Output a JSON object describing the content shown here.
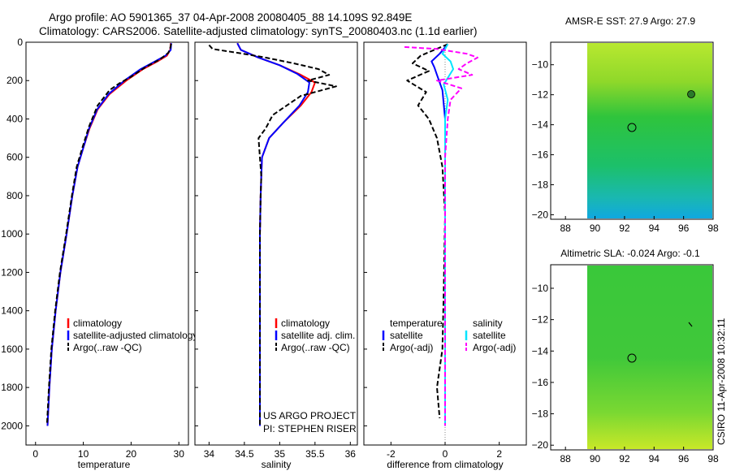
{
  "header": {
    "line1": "Argo profile: AO 5901365_37 04-Apr-2008 20080405_88 14.109S 92.849E",
    "line2": "Climatology: CARS2006. Satellite-adjusted climatology: synTS_20080403.nc (1.1d earlier)"
  },
  "credit": "CSIRO 11-Apr-2008 10:32:11",
  "chart_data": [
    {
      "id": "temperature",
      "type": "line",
      "xlabel": "temperature",
      "ylabel": "",
      "xlim": [
        -2,
        32
      ],
      "ylim": [
        2100,
        0
      ],
      "xticks": [
        0,
        10,
        20,
        30
      ],
      "yticks": [
        0,
        200,
        400,
        600,
        800,
        1000,
        1200,
        1400,
        1600,
        1800,
        2000
      ],
      "legend": [
        "climatology",
        "satellite-adjusted climatology",
        "Argo(..raw -QC)"
      ],
      "series": [
        {
          "name": "climatology",
          "color": "#ff0000",
          "dash": "",
          "points": [
            [
              28.3,
              5
            ],
            [
              28.2,
              40
            ],
            [
              27.5,
              70
            ],
            [
              25.5,
              100
            ],
            [
              22.5,
              140
            ],
            [
              19,
              200
            ],
            [
              15.5,
              270
            ],
            [
              13,
              350
            ],
            [
              11.3,
              450
            ],
            [
              10,
              550
            ],
            [
              8.8,
              650
            ],
            [
              7.7,
              800
            ],
            [
              6.5,
              1000
            ],
            [
              5.2,
              1200
            ],
            [
              4.2,
              1400
            ],
            [
              3.4,
              1600
            ],
            [
              2.9,
              1800
            ],
            [
              2.5,
              2000
            ]
          ]
        },
        {
          "name": "satellite-adjusted climatology",
          "color": "#0000ff",
          "dash": "",
          "points": [
            [
              28.4,
              5
            ],
            [
              28.3,
              40
            ],
            [
              27.2,
              70
            ],
            [
              25,
              100
            ],
            [
              22,
              140
            ],
            [
              18.6,
              200
            ],
            [
              15.3,
              270
            ],
            [
              12.9,
              350
            ],
            [
              11.2,
              450
            ],
            [
              10,
              550
            ],
            [
              8.8,
              650
            ],
            [
              7.7,
              800
            ],
            [
              6.5,
              1000
            ],
            [
              5.2,
              1200
            ],
            [
              4.2,
              1400
            ],
            [
              3.4,
              1600
            ],
            [
              2.9,
              1800
            ],
            [
              2.5,
              2000
            ]
          ]
        },
        {
          "name": "Argo(..raw -QC)",
          "color": "#000000",
          "dash": "6,3",
          "points": [
            [
              28.4,
              8
            ],
            [
              28.2,
              30
            ],
            [
              27.8,
              55
            ],
            [
              26,
              90
            ],
            [
              23,
              130
            ],
            [
              20,
              180
            ],
            [
              17.5,
              215
            ],
            [
              15.5,
              250
            ],
            [
              13,
              330
            ],
            [
              11.2,
              440
            ],
            [
              9.8,
              550
            ],
            [
              8.6,
              650
            ],
            [
              7.6,
              800
            ],
            [
              6.4,
              1000
            ],
            [
              5.1,
              1200
            ],
            [
              4.1,
              1400
            ],
            [
              3.3,
              1600
            ],
            [
              2.8,
              1800
            ],
            [
              2.4,
              1990
            ]
          ]
        }
      ]
    },
    {
      "id": "salinity",
      "type": "line",
      "xlabel": "salinity",
      "ylabel": "",
      "xlim": [
        33.8,
        36.1
      ],
      "ylim": [
        2100,
        0
      ],
      "xticks": [
        34,
        34.5,
        35,
        35.5,
        36
      ],
      "yticks": [
        0,
        200,
        400,
        600,
        800,
        1000,
        1200,
        1400,
        1600,
        1800,
        2000
      ],
      "legend": [
        "climatology",
        "satellite adj. clim.",
        "Argo(..raw -QC)"
      ],
      "annotation": [
        "US ARGO PROJECT",
        "PI: STEPHEN RISER"
      ],
      "series": [
        {
          "name": "climatology",
          "color": "#ff0000",
          "dash": "",
          "points": [
            [
              34.4,
              5
            ],
            [
              34.45,
              40
            ],
            [
              34.7,
              80
            ],
            [
              35.0,
              120
            ],
            [
              35.3,
              170
            ],
            [
              35.5,
              210
            ],
            [
              35.45,
              260
            ],
            [
              35.3,
              330
            ],
            [
              35.05,
              420
            ],
            [
              34.85,
              500
            ],
            [
              34.75,
              600
            ],
            [
              34.74,
              700
            ],
            [
              34.73,
              800
            ],
            [
              34.72,
              1000
            ],
            [
              34.72,
              1400
            ],
            [
              34.72,
              1800
            ],
            [
              34.72,
              2000
            ]
          ]
        },
        {
          "name": "satellite adj. clim.",
          "color": "#0000ff",
          "dash": "",
          "points": [
            [
              34.4,
              5
            ],
            [
              34.45,
              40
            ],
            [
              34.7,
              80
            ],
            [
              35.0,
              120
            ],
            [
              35.25,
              165
            ],
            [
              35.42,
              210
            ],
            [
              35.4,
              260
            ],
            [
              35.28,
              330
            ],
            [
              35.05,
              420
            ],
            [
              34.85,
              500
            ],
            [
              34.75,
              600
            ],
            [
              34.74,
              700
            ],
            [
              34.73,
              800
            ],
            [
              34.72,
              1000
            ],
            [
              34.72,
              1400
            ],
            [
              34.72,
              1800
            ],
            [
              34.72,
              2000
            ]
          ]
        },
        {
          "name": "Argo(..raw -QC)",
          "color": "#000000",
          "dash": "6,3",
          "points": [
            [
              34.0,
              15
            ],
            [
              34.05,
              35
            ],
            [
              34.4,
              55
            ],
            [
              34.8,
              80
            ],
            [
              35.2,
              110
            ],
            [
              35.55,
              140
            ],
            [
              35.7,
              170
            ],
            [
              35.4,
              200
            ],
            [
              35.8,
              230
            ],
            [
              35.3,
              280
            ],
            [
              35.1,
              330
            ],
            [
              34.9,
              380
            ],
            [
              34.8,
              450
            ],
            [
              34.7,
              500
            ],
            [
              34.72,
              600
            ],
            [
              34.74,
              700
            ],
            [
              34.73,
              800
            ],
            [
              34.72,
              1000
            ],
            [
              34.72,
              1400
            ],
            [
              34.72,
              1800
            ],
            [
              34.72,
              2000
            ]
          ]
        }
      ]
    },
    {
      "id": "difference",
      "type": "line",
      "xlabel": "difference from climatology",
      "ylabel": "",
      "xlim": [
        -3,
        3
      ],
      "ylim": [
        2100,
        0
      ],
      "xticks": [
        -2,
        0,
        2
      ],
      "yticks": [
        0,
        200,
        400,
        600,
        800,
        1000,
        1200,
        1400,
        1600,
        1800,
        2000
      ],
      "legend": [
        "temperature",
        "satellite",
        "Argo(-adj)",
        "salinity",
        "satellite",
        "Argo(-adj)"
      ],
      "series": [
        {
          "name": "temperature satellite",
          "color": "#0000ff",
          "dash": "",
          "points": [
            [
              0.1,
              10
            ],
            [
              -0.2,
              60
            ],
            [
              -0.5,
              100
            ],
            [
              -0.4,
              130
            ],
            [
              -0.3,
              170
            ],
            [
              -0.1,
              250
            ],
            [
              0,
              400
            ],
            [
              0,
              1000
            ],
            [
              0,
              1600
            ],
            [
              0,
              2000
            ]
          ]
        },
        {
          "name": "temperature Argo(-adj)",
          "color": "#000000",
          "dash": "6,3",
          "points": [
            [
              0.1,
              10
            ],
            [
              -0.9,
              70
            ],
            [
              -1.2,
              110
            ],
            [
              -0.6,
              150
            ],
            [
              -1.4,
              200
            ],
            [
              -0.7,
              260
            ],
            [
              -1.0,
              330
            ],
            [
              -0.6,
              400
            ],
            [
              -0.3,
              500
            ],
            [
              -0.1,
              650
            ],
            [
              0,
              900
            ],
            [
              -0.05,
              1300
            ],
            [
              -0.1,
              1600
            ],
            [
              -0.3,
              1800
            ],
            [
              -0.2,
              1960
            ]
          ]
        },
        {
          "name": "salinity satellite",
          "color": "#00e5ff",
          "dash": "",
          "points": [
            [
              0.1,
              10
            ],
            [
              -0.1,
              60
            ],
            [
              0.2,
              100
            ],
            [
              0.3,
              140
            ],
            [
              -0.05,
              220
            ],
            [
              0.1,
              300
            ],
            [
              0,
              400
            ],
            [
              0,
              1000
            ],
            [
              0,
              1600
            ],
            [
              0,
              2000
            ]
          ]
        },
        {
          "name": "salinity Argo(-adj)",
          "color": "#ff00ff",
          "dash": "6,3",
          "points": [
            [
              -1.5,
              25
            ],
            [
              -0.3,
              35
            ],
            [
              0.8,
              60
            ],
            [
              1.2,
              80
            ],
            [
              0.8,
              110
            ],
            [
              0.5,
              140
            ],
            [
              1.0,
              170
            ],
            [
              -0.3,
              200
            ],
            [
              0.6,
              240
            ],
            [
              0.2,
              300
            ],
            [
              0.1,
              400
            ],
            [
              0,
              600
            ],
            [
              0,
              1000
            ],
            [
              0,
              2000
            ]
          ]
        }
      ]
    },
    {
      "id": "sst-map",
      "type": "heatmap",
      "title": "AMSR-E SST: 27.9 Argo: 27.9",
      "xlim": [
        87,
        98
      ],
      "ylim": [
        -20.3,
        -8.5
      ],
      "xticks": [
        88,
        90,
        92,
        94,
        96,
        98
      ],
      "yticks": [
        -10,
        -12,
        -14,
        -16,
        -18,
        -20
      ],
      "data_region_xlim": [
        90,
        98
      ],
      "profile_location": [
        92.85,
        -14.11
      ]
    },
    {
      "id": "sla-map",
      "type": "heatmap",
      "title": "Altimetric SLA: -0.024 Argo: -0.1",
      "xlim": [
        87,
        98
      ],
      "ylim": [
        -20.3,
        -8.5
      ],
      "xticks": [
        88,
        90,
        92,
        94,
        96,
        98
      ],
      "yticks": [
        -10,
        -12,
        -14,
        -16,
        -18,
        -20
      ],
      "data_region_xlim": [
        90,
        98
      ],
      "profile_location": [
        92.85,
        -14.11
      ]
    }
  ]
}
